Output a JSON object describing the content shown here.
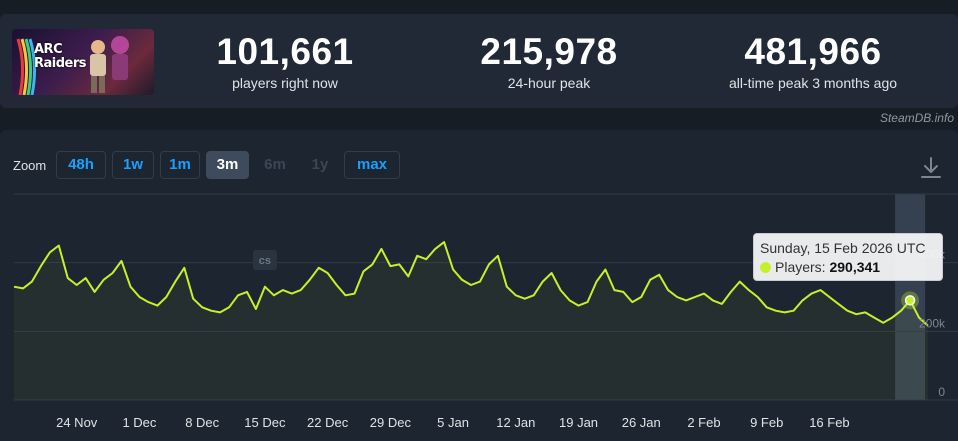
{
  "game": {
    "thumbnail_title_line1": "ARC",
    "thumbnail_title_line2": "Raiders"
  },
  "stats": [
    {
      "value": "101,661",
      "label": "players right now"
    },
    {
      "value": "215,978",
      "label": "24-hour peak"
    },
    {
      "value": "481,966",
      "label": "all-time peak 3 months ago"
    }
  ],
  "credit": "SteamDB.info",
  "zoom": {
    "label": "Zoom",
    "buttons": [
      {
        "label": "48h",
        "state": "enabled"
      },
      {
        "label": "1w",
        "state": "enabled"
      },
      {
        "label": "1m",
        "state": "enabled"
      },
      {
        "label": "3m",
        "state": "active"
      },
      {
        "label": "6m",
        "state": "disabled"
      },
      {
        "label": "1y",
        "state": "disabled"
      },
      {
        "label": "max",
        "state": "enabled"
      }
    ]
  },
  "icons": {
    "download": "download-icon",
    "event_marker": "cs"
  },
  "tooltip": {
    "date": "Sunday, 15 Feb 2026 UTC",
    "series_label": "Players:",
    "value": "290,341"
  },
  "colors": {
    "series": "#c6f12a",
    "highlight_band": "#3d4b5c",
    "accent": "#1a9fff"
  },
  "chart_data": {
    "type": "line",
    "x_tick_labels": [
      "24 Nov",
      "1 Dec",
      "8 Dec",
      "15 Dec",
      "22 Dec",
      "29 Dec",
      "5 Jan",
      "12 Jan",
      "19 Jan",
      "26 Jan",
      "2 Feb",
      "9 Feb",
      "16 Feb"
    ],
    "y_tick_labels": [
      "0",
      "200k",
      "400k"
    ],
    "ylim": [
      0,
      600000
    ],
    "grid": true,
    "series": [
      {
        "name": "Players",
        "values": [
          330000,
          325000,
          345000,
          390000,
          430000,
          450000,
          355000,
          335000,
          355000,
          315000,
          350000,
          370000,
          405000,
          330000,
          300000,
          285000,
          275000,
          300000,
          345000,
          385000,
          295000,
          270000,
          260000,
          255000,
          270000,
          305000,
          315000,
          265000,
          330000,
          305000,
          320000,
          310000,
          320000,
          350000,
          385000,
          370000,
          335000,
          305000,
          310000,
          375000,
          395000,
          440000,
          390000,
          395000,
          360000,
          420000,
          410000,
          440000,
          460000,
          380000,
          350000,
          335000,
          345000,
          395000,
          420000,
          330000,
          305000,
          295000,
          305000,
          345000,
          370000,
          320000,
          290000,
          275000,
          285000,
          345000,
          380000,
          320000,
          315000,
          285000,
          300000,
          350000,
          365000,
          320000,
          300000,
          290000,
          300000,
          310000,
          290000,
          280000,
          315000,
          345000,
          320000,
          300000,
          270000,
          260000,
          255000,
          260000,
          290000,
          310000,
          320000,
          300000,
          280000,
          260000,
          250000,
          255000,
          240000,
          225000,
          240000,
          260000,
          290341,
          240000,
          215978
        ]
      }
    ],
    "highlight": {
      "label": "15 Feb 2026",
      "value": 290341
    },
    "events": [
      {
        "x_label": "15 Dec",
        "text": "cs"
      }
    ]
  }
}
